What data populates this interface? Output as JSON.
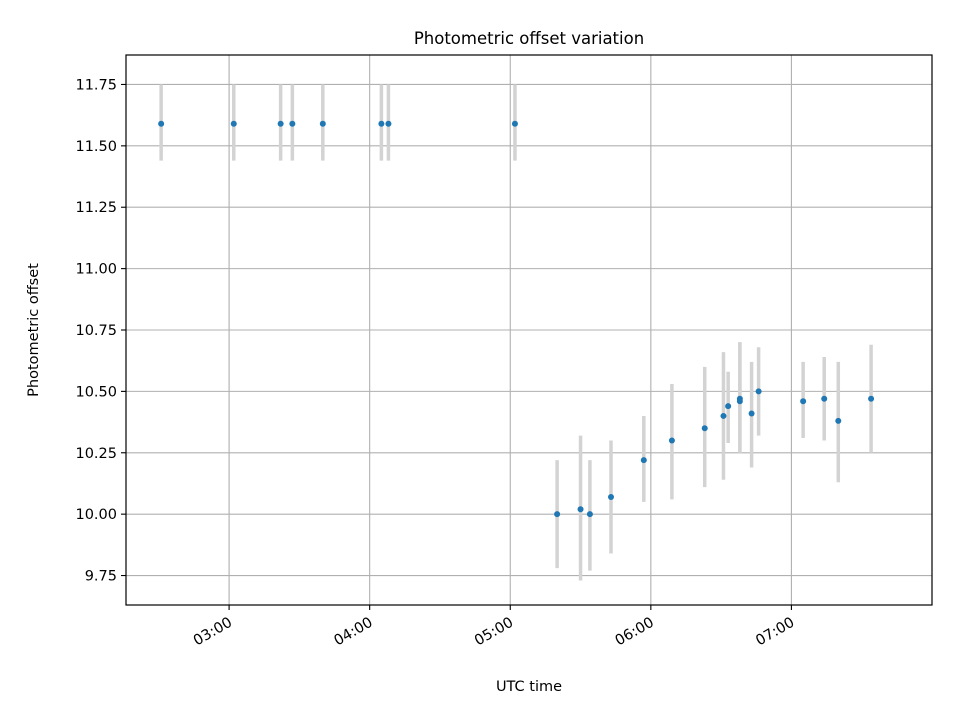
{
  "chart_data": {
    "type": "scatter",
    "title": "Photometric offset variation",
    "xlabel": "UTC time",
    "ylabel": "Photometric offset",
    "x_axis": "time",
    "xlim": [
      "02:16",
      "08:00"
    ],
    "ylim": [
      9.63,
      11.87
    ],
    "x_ticks": [
      "03:00",
      "04:00",
      "05:00",
      "06:00",
      "07:00"
    ],
    "y_ticks": [
      "9.75",
      "10.00",
      "10.25",
      "10.50",
      "10.75",
      "11.00",
      "11.25",
      "11.50",
      "11.75"
    ],
    "grid": true,
    "colors": {
      "marker": "#1f77b4",
      "errorbar": "#d3d3d3",
      "grid": "#b0b0b0"
    },
    "points": [
      {
        "t": "02:31",
        "y": 11.59,
        "ylow": 11.44,
        "yhigh": 11.75
      },
      {
        "t": "03:02",
        "y": 11.59,
        "ylow": 11.44,
        "yhigh": 11.75
      },
      {
        "t": "03:22",
        "y": 11.59,
        "ylow": 11.44,
        "yhigh": 11.75
      },
      {
        "t": "03:27",
        "y": 11.59,
        "ylow": 11.44,
        "yhigh": 11.75
      },
      {
        "t": "03:40",
        "y": 11.59,
        "ylow": 11.44,
        "yhigh": 11.75
      },
      {
        "t": "04:05",
        "y": 11.59,
        "ylow": 11.44,
        "yhigh": 11.75
      },
      {
        "t": "04:08",
        "y": 11.59,
        "ylow": 11.44,
        "yhigh": 11.75
      },
      {
        "t": "05:02",
        "y": 11.59,
        "ylow": 11.44,
        "yhigh": 11.75
      },
      {
        "t": "05:20",
        "y": 10.0,
        "ylow": 9.78,
        "yhigh": 10.22
      },
      {
        "t": "05:30",
        "y": 10.02,
        "ylow": 9.73,
        "yhigh": 10.32
      },
      {
        "t": "05:34",
        "y": 10.0,
        "ylow": 9.77,
        "yhigh": 10.22
      },
      {
        "t": "05:43",
        "y": 10.07,
        "ylow": 9.84,
        "yhigh": 10.3
      },
      {
        "t": "05:57",
        "y": 10.22,
        "ylow": 10.05,
        "yhigh": 10.4
      },
      {
        "t": "06:09",
        "y": 10.3,
        "ylow": 10.06,
        "yhigh": 10.53
      },
      {
        "t": "06:23",
        "y": 10.35,
        "ylow": 10.11,
        "yhigh": 10.6
      },
      {
        "t": "06:31",
        "y": 10.4,
        "ylow": 10.14,
        "yhigh": 10.66
      },
      {
        "t": "06:33",
        "y": 10.44,
        "ylow": 10.29,
        "yhigh": 10.58
      },
      {
        "t": "06:38",
        "y": 10.47,
        "ylow": 10.25,
        "yhigh": 10.7
      },
      {
        "t": "06:38",
        "y": 10.46,
        "ylow": 10.25,
        "yhigh": 10.7
      },
      {
        "t": "06:43",
        "y": 10.41,
        "ylow": 10.19,
        "yhigh": 10.62
      },
      {
        "t": "06:46",
        "y": 10.5,
        "ylow": 10.32,
        "yhigh": 10.68
      },
      {
        "t": "07:05",
        "y": 10.46,
        "ylow": 10.31,
        "yhigh": 10.62
      },
      {
        "t": "07:14",
        "y": 10.47,
        "ylow": 10.3,
        "yhigh": 10.64
      },
      {
        "t": "07:20",
        "y": 10.38,
        "ylow": 10.13,
        "yhigh": 10.62
      },
      {
        "t": "07:34",
        "y": 10.47,
        "ylow": 10.25,
        "yhigh": 10.69
      }
    ]
  }
}
